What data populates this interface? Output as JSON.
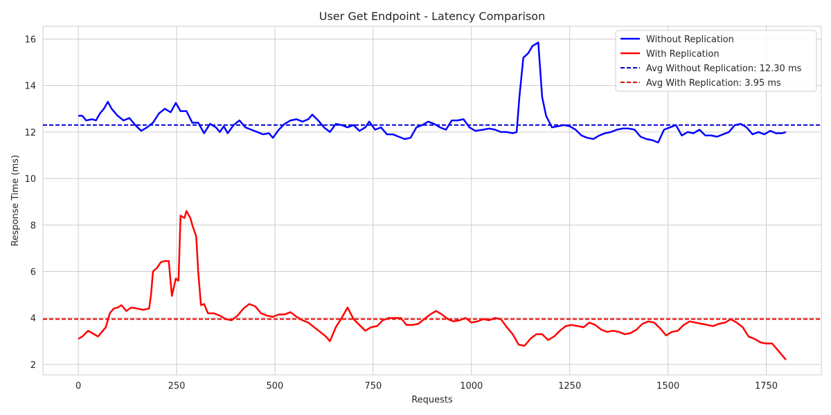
{
  "chart_data": {
    "type": "line",
    "title": "User Get Endpoint - Latency Comparison",
    "xlabel": "Requests",
    "ylabel": "Response Time (ms)",
    "xlim": [
      -90,
      1890
    ],
    "ylim": [
      1.55,
      16.55
    ],
    "xticks": [
      0,
      250,
      500,
      750,
      1000,
      1250,
      1500,
      1750
    ],
    "yticks": [
      2,
      4,
      6,
      8,
      10,
      12,
      14,
      16
    ],
    "grid": true,
    "legend_position": "top-right",
    "series": [
      {
        "name": "Without Replication",
        "color": "#0000ff",
        "style": "solid",
        "points": [
          [
            0,
            12.7
          ],
          [
            10,
            12.7
          ],
          [
            20,
            12.5
          ],
          [
            35,
            12.55
          ],
          [
            45,
            12.5
          ],
          [
            55,
            12.8
          ],
          [
            65,
            13.0
          ],
          [
            75,
            13.3
          ],
          [
            85,
            13.0
          ],
          [
            100,
            12.7
          ],
          [
            115,
            12.5
          ],
          [
            130,
            12.6
          ],
          [
            145,
            12.3
          ],
          [
            160,
            12.05
          ],
          [
            175,
            12.2
          ],
          [
            190,
            12.4
          ],
          [
            205,
            12.8
          ],
          [
            220,
            13.0
          ],
          [
            235,
            12.85
          ],
          [
            248,
            13.25
          ],
          [
            260,
            12.9
          ],
          [
            275,
            12.9
          ],
          [
            290,
            12.4
          ],
          [
            305,
            12.4
          ],
          [
            320,
            11.95
          ],
          [
            335,
            12.35
          ],
          [
            350,
            12.2
          ],
          [
            360,
            12.0
          ],
          [
            370,
            12.25
          ],
          [
            380,
            11.95
          ],
          [
            395,
            12.3
          ],
          [
            410,
            12.5
          ],
          [
            425,
            12.2
          ],
          [
            440,
            12.1
          ],
          [
            455,
            12.0
          ],
          [
            470,
            11.9
          ],
          [
            485,
            11.95
          ],
          [
            495,
            11.75
          ],
          [
            510,
            12.1
          ],
          [
            525,
            12.35
          ],
          [
            540,
            12.5
          ],
          [
            555,
            12.55
          ],
          [
            570,
            12.45
          ],
          [
            585,
            12.55
          ],
          [
            595,
            12.75
          ],
          [
            610,
            12.5
          ],
          [
            625,
            12.2
          ],
          [
            640,
            12.0
          ],
          [
            655,
            12.35
          ],
          [
            670,
            12.3
          ],
          [
            685,
            12.2
          ],
          [
            700,
            12.3
          ],
          [
            715,
            12.05
          ],
          [
            730,
            12.2
          ],
          [
            740,
            12.45
          ],
          [
            755,
            12.1
          ],
          [
            770,
            12.2
          ],
          [
            785,
            11.9
          ],
          [
            800,
            11.9
          ],
          [
            815,
            11.8
          ],
          [
            830,
            11.7
          ],
          [
            845,
            11.75
          ],
          [
            860,
            12.2
          ],
          [
            875,
            12.3
          ],
          [
            890,
            12.45
          ],
          [
            905,
            12.35
          ],
          [
            920,
            12.2
          ],
          [
            935,
            12.1
          ],
          [
            950,
            12.5
          ],
          [
            965,
            12.5
          ],
          [
            980,
            12.55
          ],
          [
            995,
            12.2
          ],
          [
            1010,
            12.05
          ],
          [
            1030,
            12.1
          ],
          [
            1045,
            12.15
          ],
          [
            1060,
            12.1
          ],
          [
            1075,
            12.0
          ],
          [
            1090,
            12.0
          ],
          [
            1105,
            11.95
          ],
          [
            1115,
            12.0
          ],
          [
            1122,
            13.5
          ],
          [
            1132,
            15.2
          ],
          [
            1145,
            15.4
          ],
          [
            1155,
            15.7
          ],
          [
            1170,
            15.85
          ],
          [
            1180,
            13.5
          ],
          [
            1190,
            12.7
          ],
          [
            1205,
            12.2
          ],
          [
            1220,
            12.25
          ],
          [
            1235,
            12.3
          ],
          [
            1250,
            12.25
          ],
          [
            1265,
            12.1
          ],
          [
            1280,
            11.85
          ],
          [
            1295,
            11.75
          ],
          [
            1310,
            11.7
          ],
          [
            1325,
            11.85
          ],
          [
            1340,
            11.95
          ],
          [
            1355,
            12.0
          ],
          [
            1370,
            12.1
          ],
          [
            1385,
            12.15
          ],
          [
            1400,
            12.15
          ],
          [
            1415,
            12.1
          ],
          [
            1430,
            11.8
          ],
          [
            1445,
            11.7
          ],
          [
            1460,
            11.65
          ],
          [
            1475,
            11.55
          ],
          [
            1490,
            12.1
          ],
          [
            1505,
            12.2
          ],
          [
            1520,
            12.3
          ],
          [
            1535,
            11.85
          ],
          [
            1550,
            12.0
          ],
          [
            1565,
            11.95
          ],
          [
            1580,
            12.1
          ],
          [
            1595,
            11.85
          ],
          [
            1610,
            11.85
          ],
          [
            1625,
            11.8
          ],
          [
            1640,
            11.9
          ],
          [
            1655,
            12.0
          ],
          [
            1670,
            12.3
          ],
          [
            1685,
            12.35
          ],
          [
            1700,
            12.2
          ],
          [
            1715,
            11.9
          ],
          [
            1730,
            12.0
          ],
          [
            1745,
            11.9
          ],
          [
            1760,
            12.05
          ],
          [
            1775,
            11.95
          ],
          [
            1790,
            11.95
          ],
          [
            1800,
            12.0
          ]
        ]
      },
      {
        "name": "With Replication",
        "color": "#ff0000",
        "style": "solid",
        "points": [
          [
            0,
            3.1
          ],
          [
            10,
            3.2
          ],
          [
            25,
            3.45
          ],
          [
            35,
            3.35
          ],
          [
            50,
            3.2
          ],
          [
            60,
            3.4
          ],
          [
            70,
            3.6
          ],
          [
            80,
            4.2
          ],
          [
            90,
            4.4
          ],
          [
            100,
            4.45
          ],
          [
            110,
            4.55
          ],
          [
            122,
            4.3
          ],
          [
            135,
            4.45
          ],
          [
            150,
            4.4
          ],
          [
            165,
            4.35
          ],
          [
            180,
            4.4
          ],
          [
            185,
            5.0
          ],
          [
            190,
            6.0
          ],
          [
            200,
            6.15
          ],
          [
            210,
            6.4
          ],
          [
            220,
            6.45
          ],
          [
            230,
            6.45
          ],
          [
            238,
            4.95
          ],
          [
            248,
            5.7
          ],
          [
            255,
            5.6
          ],
          [
            260,
            8.4
          ],
          [
            270,
            8.3
          ],
          [
            275,
            8.6
          ],
          [
            285,
            8.3
          ],
          [
            290,
            8.0
          ],
          [
            300,
            7.5
          ],
          [
            305,
            6.0
          ],
          [
            312,
            4.55
          ],
          [
            320,
            4.6
          ],
          [
            330,
            4.2
          ],
          [
            345,
            4.2
          ],
          [
            360,
            4.1
          ],
          [
            375,
            3.95
          ],
          [
            390,
            3.9
          ],
          [
            405,
            4.1
          ],
          [
            420,
            4.4
          ],
          [
            435,
            4.6
          ],
          [
            450,
            4.5
          ],
          [
            465,
            4.2
          ],
          [
            480,
            4.1
          ],
          [
            495,
            4.05
          ],
          [
            510,
            4.15
          ],
          [
            525,
            4.15
          ],
          [
            540,
            4.25
          ],
          [
            555,
            4.05
          ],
          [
            570,
            3.9
          ],
          [
            585,
            3.8
          ],
          [
            600,
            3.6
          ],
          [
            615,
            3.4
          ],
          [
            630,
            3.2
          ],
          [
            640,
            3.0
          ],
          [
            655,
            3.6
          ],
          [
            670,
            4.0
          ],
          [
            685,
            4.45
          ],
          [
            700,
            3.95
          ],
          [
            715,
            3.7
          ],
          [
            730,
            3.45
          ],
          [
            745,
            3.6
          ],
          [
            760,
            3.65
          ],
          [
            775,
            3.9
          ],
          [
            790,
            4.0
          ],
          [
            805,
            4.0
          ],
          [
            820,
            4.0
          ],
          [
            835,
            3.7
          ],
          [
            850,
            3.7
          ],
          [
            865,
            3.75
          ],
          [
            880,
            3.95
          ],
          [
            895,
            4.15
          ],
          [
            910,
            4.3
          ],
          [
            925,
            4.15
          ],
          [
            940,
            3.95
          ],
          [
            955,
            3.85
          ],
          [
            970,
            3.9
          ],
          [
            985,
            4.0
          ],
          [
            1000,
            3.8
          ],
          [
            1015,
            3.85
          ],
          [
            1030,
            3.95
          ],
          [
            1045,
            3.9
          ],
          [
            1060,
            4.0
          ],
          [
            1075,
            3.95
          ],
          [
            1090,
            3.6
          ],
          [
            1105,
            3.3
          ],
          [
            1120,
            2.85
          ],
          [
            1135,
            2.8
          ],
          [
            1150,
            3.1
          ],
          [
            1165,
            3.3
          ],
          [
            1180,
            3.3
          ],
          [
            1195,
            3.05
          ],
          [
            1210,
            3.2
          ],
          [
            1225,
            3.45
          ],
          [
            1240,
            3.65
          ],
          [
            1255,
            3.7
          ],
          [
            1270,
            3.65
          ],
          [
            1285,
            3.6
          ],
          [
            1300,
            3.8
          ],
          [
            1315,
            3.7
          ],
          [
            1330,
            3.5
          ],
          [
            1345,
            3.4
          ],
          [
            1360,
            3.45
          ],
          [
            1375,
            3.4
          ],
          [
            1390,
            3.3
          ],
          [
            1405,
            3.35
          ],
          [
            1420,
            3.5
          ],
          [
            1435,
            3.75
          ],
          [
            1450,
            3.85
          ],
          [
            1465,
            3.8
          ],
          [
            1480,
            3.55
          ],
          [
            1495,
            3.25
          ],
          [
            1510,
            3.4
          ],
          [
            1525,
            3.45
          ],
          [
            1540,
            3.7
          ],
          [
            1555,
            3.85
          ],
          [
            1570,
            3.8
          ],
          [
            1585,
            3.75
          ],
          [
            1600,
            3.7
          ],
          [
            1615,
            3.65
          ],
          [
            1630,
            3.75
          ],
          [
            1645,
            3.8
          ],
          [
            1660,
            3.95
          ],
          [
            1675,
            3.8
          ],
          [
            1690,
            3.6
          ],
          [
            1705,
            3.2
          ],
          [
            1720,
            3.1
          ],
          [
            1735,
            2.95
          ],
          [
            1750,
            2.9
          ],
          [
            1765,
            2.9
          ],
          [
            1780,
            2.6
          ],
          [
            1790,
            2.4
          ],
          [
            1800,
            2.2
          ]
        ]
      }
    ],
    "reference_lines": [
      {
        "name": "Avg Without Replication: 12.30 ms",
        "y": 12.3,
        "color": "#0000cc",
        "style": "dashed"
      },
      {
        "name": "Avg With Replication: 3.95 ms",
        "y": 3.95,
        "color": "#ee0000",
        "style": "dashed"
      }
    ]
  }
}
